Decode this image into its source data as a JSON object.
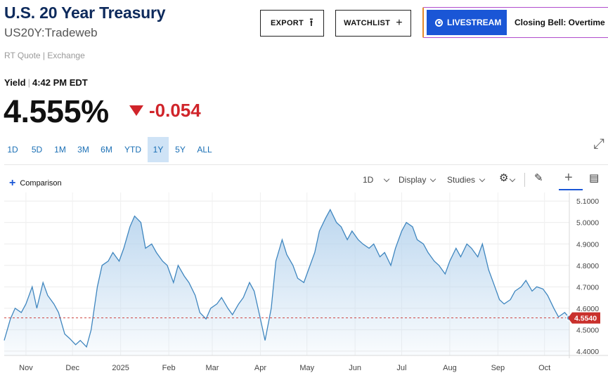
{
  "header": {
    "title": "U.S. 20 Year Treasury",
    "symbol": "US20Y:Tradeweb",
    "source": "RT Quote | Exchange"
  },
  "actions": {
    "export_label": "EXPORT",
    "watchlist_label": "WATCHLIST",
    "livestream_label": "LIVESTREAM",
    "livestream_show": "Closing Bell: Overtime"
  },
  "quote": {
    "label": "Yield",
    "time": "4:42 PM EDT",
    "price": "4.555%",
    "change": "-0.054",
    "change_color": "#d0242a"
  },
  "ranges": {
    "items": [
      "1D",
      "5D",
      "1M",
      "3M",
      "6M",
      "YTD",
      "1Y",
      "5Y",
      "ALL"
    ],
    "active": "1Y"
  },
  "toolbar": {
    "comparison_label": "Comparison",
    "interval_label": "1D",
    "display_label": "Display",
    "studies_label": "Studies",
    "icons": [
      "gear-icon",
      "pencil-icon",
      "crosshair-icon",
      "comment-icon",
      "expand-icon",
      "plus-icon"
    ]
  },
  "chart_data": {
    "type": "area",
    "line_color": "#3f86bf",
    "fill_color": "#b9d5ee",
    "ylim": [
      4.38,
      5.14
    ],
    "y_ticks": [
      "5.1000",
      "5.0000",
      "4.9000",
      "4.8000",
      "4.7000",
      "4.6000",
      "4.5000",
      "4.4000"
    ],
    "x_ticks": [
      "Nov",
      "Dec",
      "2025",
      "Feb",
      "Mar",
      "Apr",
      "May",
      "Jun",
      "Jul",
      "Aug",
      "Sep",
      "Oct"
    ],
    "x_tick_dates": [
      "2024-11-01",
      "2024-12-01",
      "2025-01-01",
      "2025-02-01",
      "2025-03-01",
      "2025-04-01",
      "2025-05-01",
      "2025-06-01",
      "2025-07-01",
      "2025-08-01",
      "2025-09-01",
      "2025-10-01"
    ],
    "last_value_label": "4.5540",
    "last_value_color": "#c9302c",
    "reference_value": 4.555,
    "series": [
      {
        "x": [
          "2024-10-18",
          "2024-10-22",
          "2024-10-25",
          "2024-10-29",
          "2024-11-01",
          "2024-11-05",
          "2024-11-08",
          "2024-11-12",
          "2024-11-15",
          "2024-11-19",
          "2024-11-22",
          "2024-11-26",
          "2024-11-29",
          "2024-12-03",
          "2024-12-06",
          "2024-12-10",
          "2024-12-13",
          "2024-12-17",
          "2024-12-20",
          "2024-12-24",
          "2024-12-27",
          "2024-12-31",
          "2025-01-03",
          "2025-01-07",
          "2025-01-10",
          "2025-01-14",
          "2025-01-17",
          "2025-01-21",
          "2025-01-24",
          "2025-01-28",
          "2025-01-31",
          "2025-02-04",
          "2025-02-07",
          "2025-02-11",
          "2025-02-14",
          "2025-02-18",
          "2025-02-21",
          "2025-02-25",
          "2025-02-28",
          "2025-03-04",
          "2025-03-07",
          "2025-03-11",
          "2025-03-14",
          "2025-03-18",
          "2025-03-21",
          "2025-03-25",
          "2025-03-28",
          "2025-04-01",
          "2025-04-04",
          "2025-04-08",
          "2025-04-11",
          "2025-04-15",
          "2025-04-18",
          "2025-04-22",
          "2025-04-25",
          "2025-04-29",
          "2025-05-02",
          "2025-05-06",
          "2025-05-09",
          "2025-05-13",
          "2025-05-16",
          "2025-05-20",
          "2025-05-23",
          "2025-05-27",
          "2025-05-30",
          "2025-06-03",
          "2025-06-06",
          "2025-06-10",
          "2025-06-13",
          "2025-06-17",
          "2025-06-20",
          "2025-06-24",
          "2025-06-27",
          "2025-07-01",
          "2025-07-04",
          "2025-07-08",
          "2025-07-11",
          "2025-07-15",
          "2025-07-18",
          "2025-07-22",
          "2025-07-25",
          "2025-07-29",
          "2025-08-01",
          "2025-08-05",
          "2025-08-08",
          "2025-08-12",
          "2025-08-15",
          "2025-08-19",
          "2025-08-22",
          "2025-08-26",
          "2025-08-29",
          "2025-09-02",
          "2025-09-05",
          "2025-09-09",
          "2025-09-12",
          "2025-09-16",
          "2025-09-19",
          "2025-09-23",
          "2025-09-26",
          "2025-09-30",
          "2025-10-03",
          "2025-10-07",
          "2025-10-10",
          "2025-10-14",
          "2025-10-17"
        ],
        "y": [
          4.45,
          4.55,
          4.6,
          4.58,
          4.62,
          4.7,
          4.6,
          4.72,
          4.66,
          4.62,
          4.58,
          4.48,
          4.46,
          4.43,
          4.45,
          4.42,
          4.5,
          4.7,
          4.8,
          4.82,
          4.86,
          4.82,
          4.88,
          4.98,
          5.03,
          5.0,
          4.88,
          4.9,
          4.86,
          4.82,
          4.8,
          4.72,
          4.8,
          4.75,
          4.72,
          4.66,
          4.58,
          4.55,
          4.6,
          4.62,
          4.65,
          4.6,
          4.57,
          4.62,
          4.65,
          4.72,
          4.68,
          4.55,
          4.45,
          4.6,
          4.82,
          4.92,
          4.85,
          4.8,
          4.74,
          4.72,
          4.78,
          4.86,
          4.96,
          5.02,
          5.06,
          5.0,
          4.98,
          4.92,
          4.96,
          4.92,
          4.9,
          4.88,
          4.9,
          4.84,
          4.86,
          4.8,
          4.88,
          4.96,
          5.0,
          4.98,
          4.92,
          4.9,
          4.86,
          4.82,
          4.8,
          4.76,
          4.82,
          4.88,
          4.84,
          4.9,
          4.88,
          4.84,
          4.9,
          4.78,
          4.72,
          4.64,
          4.62,
          4.64,
          4.68,
          4.7,
          4.73,
          4.68,
          4.7,
          4.69,
          4.66,
          4.6,
          4.56,
          4.58,
          4.555
        ]
      }
    ]
  }
}
